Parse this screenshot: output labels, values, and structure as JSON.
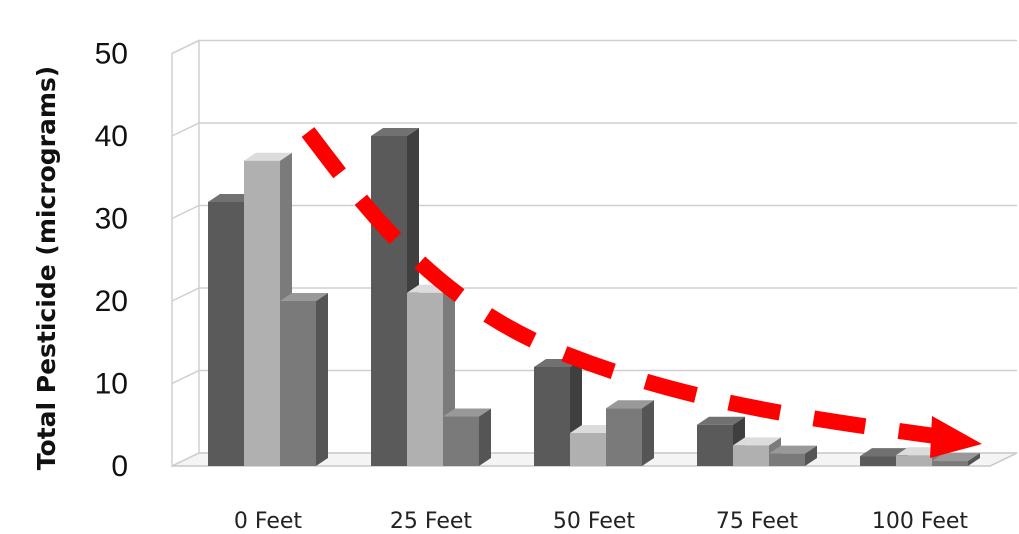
{
  "chart_data": {
    "type": "bar",
    "style": "3d-clustered-column",
    "title": "",
    "xlabel": "",
    "ylabel": "Total Pesticide  (micrograms)",
    "ylim": [
      0,
      50
    ],
    "yticks": [
      "0",
      "10",
      "20",
      "30",
      "40",
      "50"
    ],
    "categories": [
      "0 Feet",
      "25 Feet",
      "50 Feet",
      "75 Feet",
      "100 Feet"
    ],
    "series": [
      {
        "values": [
          32,
          40,
          12,
          5,
          1.2
        ],
        "color": "#5a5a5a"
      },
      {
        "values": [
          37,
          21,
          4,
          2.5,
          1.3
        ],
        "color": "#b0b0b0"
      },
      {
        "values": [
          20,
          6,
          7,
          1.5,
          0.6
        ],
        "color": "#7a7a7a"
      }
    ],
    "grid": true,
    "legend": "none",
    "trend_arrow": {
      "style": "dashed",
      "color": "#ff0000",
      "direction": "decreasing"
    }
  }
}
